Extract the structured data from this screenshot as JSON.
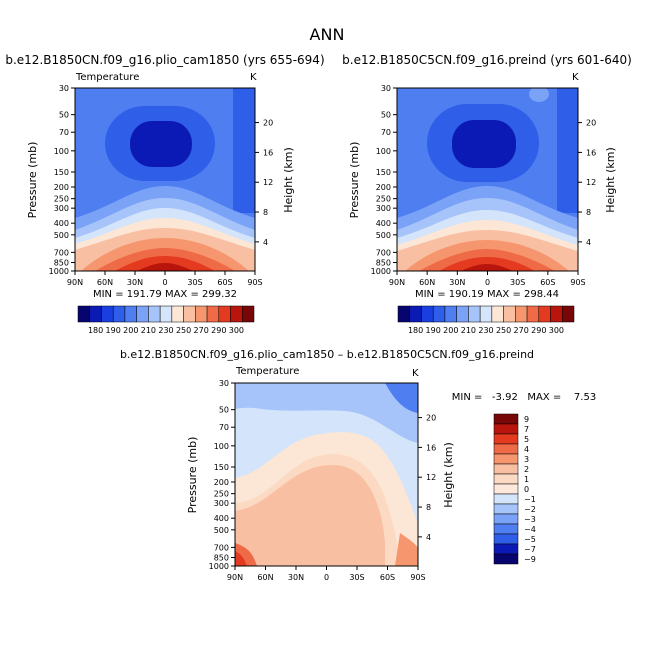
{
  "page_title": "ANN",
  "chart_data": [
    {
      "type": "heatmap",
      "title": "b.e12.B1850CN.f09_g16.plio_cam1850 (yrs 655-694)",
      "subtitle": "Temperature",
      "units": "K",
      "xlabel": "",
      "ylabel": "Pressure (mb)",
      "y2label": "Height (km)",
      "x_ticks": [
        "90N",
        "60N",
        "30N",
        "0",
        "30S",
        "60S",
        "90S"
      ],
      "y_ticks": [
        "30",
        "50",
        "70",
        "100",
        "150",
        "200",
        "250",
        "300",
        "400",
        "500",
        "700",
        "850",
        "1000"
      ],
      "y2_ticks": [
        "20",
        "16",
        "12",
        "8",
        "4"
      ],
      "y_scale": "log",
      "ylim": [
        1000,
        30
      ],
      "xlim": [
        90,
        -90
      ],
      "stats_text": "MIN = 191.79   MAX = 299.32",
      "min": 191.79,
      "max": 299.32,
      "colorbar_levels": [
        180,
        190,
        200,
        210,
        220,
        230,
        240,
        250,
        260,
        270,
        280,
        290,
        300
      ],
      "colorbar_labels": [
        "180",
        "190",
        "200",
        "210",
        "230",
        "250",
        "270",
        "290",
        "300"
      ]
    },
    {
      "type": "heatmap",
      "title": "b.e12.B1850C5CN.f09_g16.preind (yrs 601-640)",
      "subtitle": "",
      "units": "K",
      "xlabel": "",
      "ylabel": "Pressure (mb)",
      "y2label": "Height (km)",
      "x_ticks": [
        "90N",
        "60N",
        "30N",
        "0",
        "30S",
        "60S",
        "90S"
      ],
      "y_ticks": [
        "30",
        "50",
        "70",
        "100",
        "150",
        "200",
        "250",
        "300",
        "400",
        "500",
        "700",
        "850",
        "1000"
      ],
      "y2_ticks": [
        "20",
        "16",
        "12",
        "8",
        "4"
      ],
      "y_scale": "log",
      "ylim": [
        1000,
        30
      ],
      "xlim": [
        90,
        -90
      ],
      "stats_text": "MIN = 190.19   MAX = 298.44",
      "min": 190.19,
      "max": 298.44,
      "colorbar_levels": [
        180,
        190,
        200,
        210,
        220,
        230,
        240,
        250,
        260,
        270,
        280,
        290,
        300
      ],
      "colorbar_labels": [
        "180",
        "190",
        "200",
        "210",
        "230",
        "250",
        "270",
        "290",
        "300"
      ]
    },
    {
      "type": "heatmap",
      "title": "b.e12.B1850CN.f09_g16.plio_cam1850 – b.e12.B1850C5CN.f09_g16.preind",
      "subtitle": "Temperature",
      "units": "K",
      "xlabel": "",
      "ylabel": "Pressure (mb)",
      "y2label": "Height (km)",
      "x_ticks": [
        "90N",
        "60N",
        "30N",
        "0",
        "30S",
        "60S",
        "90S"
      ],
      "y_ticks": [
        "30",
        "50",
        "70",
        "100",
        "150",
        "200",
        "250",
        "300",
        "400",
        "500",
        "700",
        "850",
        "1000"
      ],
      "y2_ticks": [
        "20",
        "16",
        "12",
        "8",
        "4"
      ],
      "y_scale": "log",
      "ylim": [
        1000,
        30
      ],
      "xlim": [
        90,
        -90
      ],
      "stats_text": "MIN =   -3.92   MAX =    7.53",
      "min": -3.92,
      "max": 7.53,
      "colorbar_levels": [
        9,
        7,
        5,
        4,
        3,
        2,
        1,
        0,
        -1,
        -2,
        -3,
        -4,
        -5,
        -7,
        -9
      ],
      "colorbar_labels": [
        "9",
        "7",
        "5",
        "4",
        "3",
        "2",
        "1",
        "0",
        "−1",
        "−2",
        "−3",
        "−4",
        "−5",
        "−7",
        "−9"
      ]
    }
  ],
  "colors": {
    "abs_scale": [
      "#08046e",
      "#0c1ab5",
      "#1a3fe0",
      "#2f5ee8",
      "#4f7ef0",
      "#7aa2f7",
      "#a6c4fa",
      "#d4e4fb",
      "#fce6d6",
      "#f9bfa2",
      "#f5966f",
      "#ef6a47",
      "#e43b20",
      "#b8150c",
      "#7a0707"
    ],
    "diff_scale": [
      "#7a0707",
      "#b8150c",
      "#e43b20",
      "#ef6a47",
      "#f5966f",
      "#f9bfa2",
      "#fbd9c2",
      "#fce9dc",
      "#d4e4fb",
      "#a6c4fa",
      "#7aa2f7",
      "#4f7ef0",
      "#2f5ee8",
      "#0c1ab5",
      "#08046e"
    ]
  }
}
